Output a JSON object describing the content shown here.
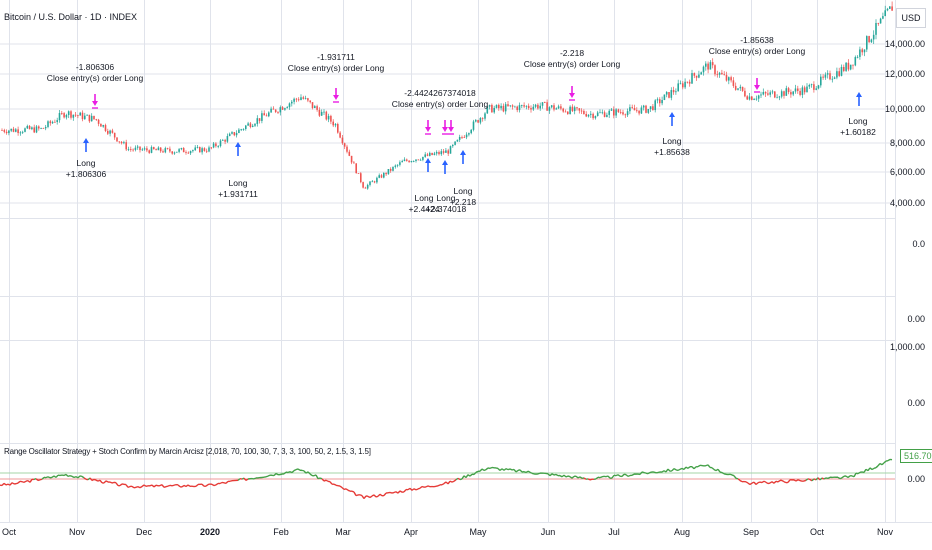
{
  "header": {
    "symbol_title": "Bitcoin / U.S. Dollar · 1D · INDEX",
    "currency": "USD"
  },
  "price_axis": {
    "main": [
      "14,000.00",
      "12,000.00",
      "10,000.00",
      "8,000.00",
      "6,000.00",
      "4,000.00"
    ],
    "pane2_zero": "0.0",
    "pane3_zero": "0.00",
    "pane4": [
      "1,000.00",
      "0.00"
    ],
    "pane5_zero": "0.00",
    "oscillator_last": "516.70"
  },
  "time_axis": {
    "labels": [
      "Oct",
      "Nov",
      "Dec",
      "2020",
      "Feb",
      "Mar",
      "Apr",
      "May",
      "Jun",
      "Jul",
      "Aug",
      "Sep",
      "Oct",
      "Nov"
    ]
  },
  "indicator": {
    "title": "Range Oscillator Strategy + Stoch Confirm  by Marcin Arcisz [2,018, 70, 100, 30, 7, 3, 3, 100, 50, 2, 1.5, 3, 1.5]"
  },
  "trade_annotations": {
    "close_entries": [
      {
        "pnl": "-1.806306",
        "label": "Close entry(s) order Long"
      },
      {
        "pnl": "-1.931711",
        "label": "Close entry(s) order Long"
      },
      {
        "pnl": "-2.4424267374018",
        "label": "Close entry(s) order Long"
      },
      {
        "pnl": "-2.218",
        "label": "Close entry(s) order Long"
      },
      {
        "pnl": "-1.85638",
        "label": "Close entry(s) order Long"
      }
    ],
    "long_entries": [
      {
        "label": "Long",
        "value": "+1.806306"
      },
      {
        "label": "Long",
        "value": "+1.931711"
      },
      {
        "label": "Long",
        "value": "+2.4424"
      },
      {
        "label": "Long",
        "value": "+2.374018"
      },
      {
        "label": "Long",
        "value": "+2.218"
      },
      {
        "label": "Long",
        "value": "+1.85638"
      },
      {
        "label": "Long",
        "value": "+1.60182"
      }
    ]
  },
  "colors": {
    "up": "#26a69a",
    "down": "#ef5350",
    "osc_up": "#43a047",
    "osc_down": "#e53935",
    "entry_arrow": "#2962ff",
    "exit_arrow": "#e91ee3",
    "grid": "#e0e3eb"
  },
  "chart_data": [
    {
      "type": "candlestick",
      "title": "Bitcoin / U.S. Dollar · 1D · INDEX",
      "x": [
        "2019-10-01",
        "2019-10-16",
        "2019-10-27",
        "2019-11-10",
        "2019-11-25",
        "2019-12-15",
        "2020-01-01",
        "2020-01-20",
        "2020-02-12",
        "2020-02-28",
        "2020-03-12",
        "2020-03-30",
        "2020-04-20",
        "2020-05-08",
        "2020-06-01",
        "2020-06-25",
        "2020-07-21",
        "2020-08-17",
        "2020-09-05",
        "2020-10-01",
        "2020-10-21",
        "2020-11-10"
      ],
      "y": [
        8300,
        8350,
        9300,
        8900,
        7200,
        7100,
        7200,
        8700,
        10200,
        8600,
        5000,
        6500,
        7100,
        9500,
        9700,
        9200,
        9500,
        12000,
        10200,
        10600,
        12000,
        15400
      ],
      "ylim": [
        3500,
        15500
      ]
    },
    {
      "type": "line",
      "title": "Range Oscillator Strategy + Stoch Confirm  by Marcin Arcisz [2,018, 70, 100, 30, 7, 3, 3, 100, 50, 2, 1.5, 3, 1.5]",
      "x": [
        "2019-10-01",
        "2019-10-27",
        "2019-11-25",
        "2020-01-01",
        "2020-02-12",
        "2020-03-12",
        "2020-04-20",
        "2020-05-08",
        "2020-06-25",
        "2020-08-17",
        "2020-09-05",
        "2020-10-21",
        "2020-11-10"
      ],
      "y": [
        -150,
        120,
        -200,
        -170,
        250,
        -500,
        -100,
        300,
        0,
        350,
        -120,
        50,
        516.7
      ]
    }
  ]
}
